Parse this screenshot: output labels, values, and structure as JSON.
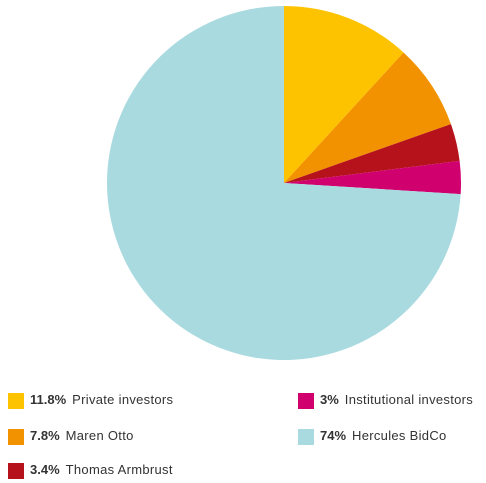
{
  "chart_data": {
    "type": "pie",
    "categories": [
      "Private investors",
      "Maren Otto",
      "Thomas Armbrust",
      "Institutional investors",
      "Hercules BidCo"
    ],
    "values": [
      11.8,
      7.8,
      3.4,
      3,
      74
    ],
    "value_labels": [
      "11.8%",
      "7.8%",
      "3.4%",
      "3%",
      "74%"
    ],
    "colors": [
      "#fdc300",
      "#f39200",
      "#b5121b",
      "#d0006f",
      "#a9dadf"
    ]
  }
}
